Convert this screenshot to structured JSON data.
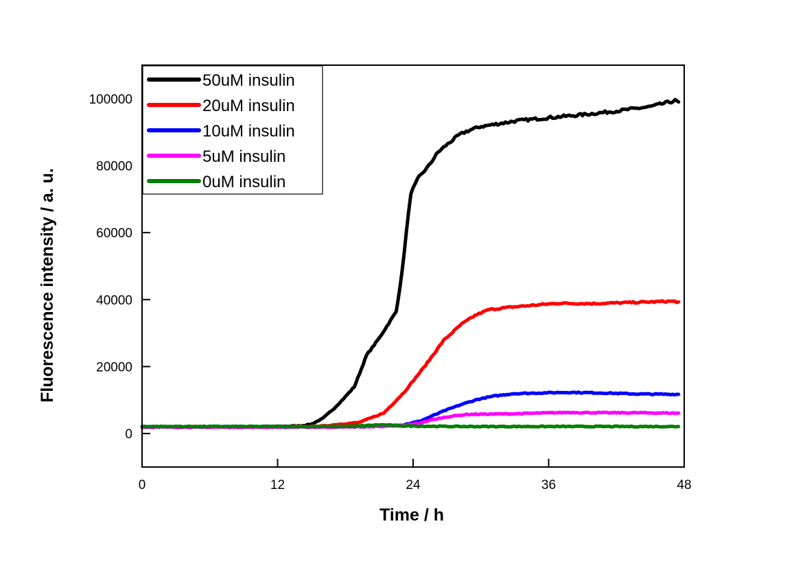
{
  "chart_data": {
    "type": "line",
    "title": "",
    "xlabel": "Time / h",
    "ylabel": "Fluorescence intensity / a. u.",
    "xlim": [
      0,
      48
    ],
    "ylim": [
      -10000,
      110000
    ],
    "xticks": [
      0,
      12,
      24,
      36,
      48
    ],
    "xtick_labels": [
      "0",
      "12",
      "24",
      "36",
      "48"
    ],
    "yticks": [
      0,
      20000,
      40000,
      60000,
      80000,
      100000
    ],
    "ytick_labels": [
      "0",
      "20000",
      "40000",
      "60000",
      "80000",
      "100000"
    ],
    "grid": false,
    "legend_position": "top-left",
    "series": [
      {
        "name": "50uM insulin",
        "color": "#000000",
        "x": [
          0,
          4,
          8,
          12,
          14,
          15,
          16,
          17,
          18,
          18.8,
          19.9,
          21,
          22.5,
          23,
          23.4,
          23.8,
          24.5,
          25.4,
          26.2,
          26.9,
          28,
          28.7,
          29.9,
          31,
          33,
          36,
          39,
          42,
          45,
          47.2,
          47.5
        ],
        "y": [
          2000,
          2000,
          2000,
          2100,
          2300,
          2800,
          4500,
          7500,
          11000,
          14000,
          23500,
          28500,
          36400,
          47600,
          60000,
          71800,
          76500,
          80000,
          84000,
          86000,
          89000,
          90200,
          91600,
          92200,
          93300,
          94300,
          95200,
          96300,
          97600,
          99400,
          99000
        ]
      },
      {
        "name": "20uM insulin",
        "color": "#ff0000",
        "x": [
          0,
          4,
          8,
          12,
          16,
          17.2,
          19.2,
          21.4,
          23.2,
          25.1,
          26.7,
          28.3,
          29.5,
          30.7,
          32.8,
          36.8,
          40,
          44,
          46.9,
          47.5
        ],
        "y": [
          2000,
          2000,
          2000,
          2000,
          2200,
          2700,
          3300,
          6100,
          12300,
          20400,
          27800,
          32700,
          35300,
          37000,
          37800,
          38900,
          38800,
          39200,
          39500,
          39300
        ]
      },
      {
        "name": "10uM insulin",
        "color": "#0000ff",
        "x": [
          0,
          4,
          8,
          12,
          16,
          20,
          23,
          24.6,
          26.7,
          28.2,
          29.7,
          31.2,
          32.8,
          35,
          37.8,
          41,
          44,
          47.3,
          47.5
        ],
        "y": [
          2000,
          2000,
          2000,
          2000,
          2000,
          2100,
          2500,
          3700,
          6700,
          8600,
          10200,
          11200,
          11900,
          12100,
          12300,
          12100,
          11800,
          11700,
          11700
        ]
      },
      {
        "name": "5uM insulin",
        "color": "#ff00ff",
        "x": [
          0,
          4,
          8,
          12,
          16,
          20,
          23,
          24.5,
          25.7,
          27,
          28.7,
          30.5,
          32.8,
          35,
          37.8,
          41,
          44,
          47.3,
          47.5
        ],
        "y": [
          1900,
          1900,
          1900,
          1900,
          1900,
          2100,
          2300,
          3100,
          4100,
          5000,
          5700,
          5800,
          5900,
          6100,
          6300,
          6200,
          6200,
          6100,
          6100
        ]
      },
      {
        "name": "0uM insulin",
        "color": "#008000",
        "x": [
          0,
          4,
          8,
          12,
          16,
          19,
          21,
          22,
          23,
          25,
          28,
          32,
          36,
          40,
          44,
          47.5
        ],
        "y": [
          2100,
          2100,
          2100,
          2100,
          2100,
          2200,
          2600,
          2500,
          2300,
          2200,
          2100,
          2100,
          2100,
          2100,
          2100,
          2100
        ]
      }
    ]
  }
}
